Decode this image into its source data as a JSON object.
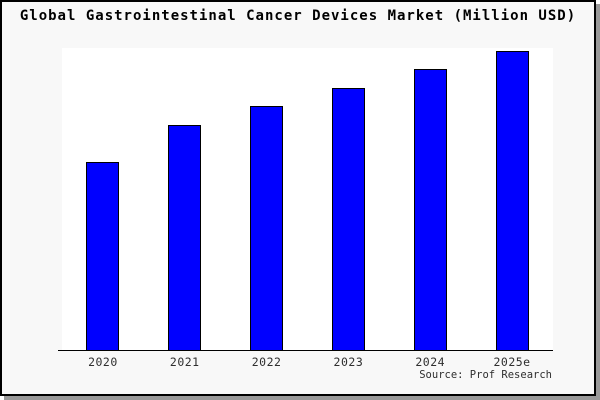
{
  "chart_data": {
    "type": "bar",
    "title": "Global Gastrointestinal Cancer Devices Market (Million USD)",
    "categories": [
      "2020",
      "2021",
      "2022",
      "2023",
      "2024",
      "2025e"
    ],
    "values": [
      62.9,
      75.3,
      81.6,
      87.6,
      94.0,
      100
    ],
    "values_note": "y-axis unlabeled; values are relative bar heights as % of the 2025e bar",
    "xlabel": "",
    "ylabel": "",
    "ylim": [
      0,
      100
    ],
    "grid": false,
    "legend": "none",
    "source_note": "Source: Prof Research"
  },
  "footer": {
    "source_label": "Source: Prof Research"
  },
  "colors": {
    "bar_fill": "#0000FF",
    "bar_border": "#000000",
    "plot_background": "#FFFFFF",
    "canvas_background": "#F8F8F8",
    "frame_border": "#000000",
    "frame_shadow": "#999999",
    "axis_line": "#000000",
    "title_text": "#000000",
    "tick_text": "#2E2E2E"
  }
}
